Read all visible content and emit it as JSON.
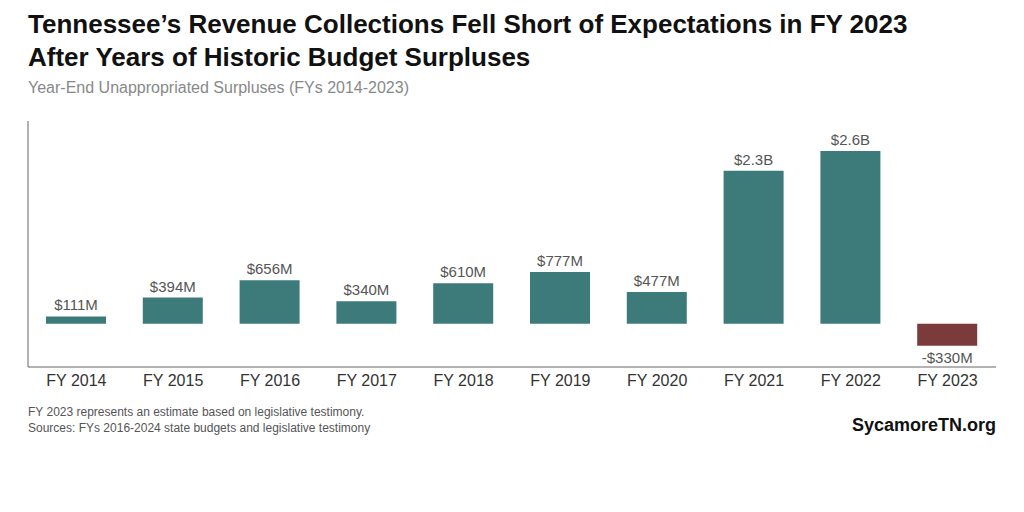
{
  "chart_data": {
    "type": "bar",
    "title": "Tennessee’s Revenue Collections Fell Short of Expectations in FY 2023\nAfter Years of Historic Budget Surpluses",
    "subtitle": "Year-End Unappropriated Surpluses (FYs 2014-2023)",
    "annotations": [
      "FY 2023 represents an estimate based on legislative testimony.\nSources: FYs 2016-2024 state budgets and legislative testimony",
      "SycamoreTN.org"
    ],
    "categories": [
      "FY 2014",
      "FY 2015",
      "FY 2016",
      "FY 2017",
      "FY 2018",
      "FY 2019",
      "FY 2020",
      "FY 2021",
      "FY 2022",
      "FY 2023"
    ],
    "values": [
      111,
      394,
      656,
      340,
      610,
      777,
      477,
      2300,
      2600,
      -330
    ],
    "value_labels": [
      "$111M",
      "$394M",
      "$656M",
      "$340M",
      "$610M",
      "$777M",
      "$477M",
      "$2.3B",
      "$2.6B",
      "-$330M"
    ],
    "data_labels": true,
    "colors": [
      "#3d7b7b",
      "#3d7b7b",
      "#3d7b7b",
      "#3d7b7b",
      "#3d7b7b",
      "#3d7b7b",
      "#3d7b7b",
      "#3d7b7b",
      "#3d7b7b",
      "#7b3b3b"
    ],
    "ylim": [
      -650,
      3050
    ],
    "tick_labels": "x",
    "grid": false
  }
}
